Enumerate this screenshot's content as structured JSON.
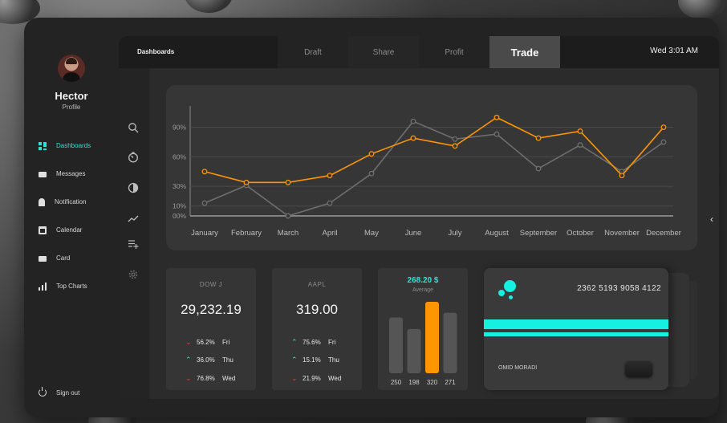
{
  "profile": {
    "name": "Hector",
    "subtitle": "Profile"
  },
  "nav": {
    "items": [
      {
        "label": "Dashboards",
        "icon": "dashboard-icon",
        "active": true
      },
      {
        "label": "Messages",
        "icon": "mail-icon"
      },
      {
        "label": "Notification",
        "icon": "bell-icon"
      },
      {
        "label": "Calendar",
        "icon": "calendar-icon"
      },
      {
        "label": "Card",
        "icon": "credit-card-icon"
      },
      {
        "label": "Top Charts",
        "icon": "bar-chart-icon"
      }
    ],
    "signout": "Sign out"
  },
  "topbar": {
    "section": "Dashboards",
    "tabs": [
      "Draft",
      "Share",
      "Profit",
      "Trade"
    ],
    "active_tab": "Trade",
    "clock": "Wed 3:01 AM"
  },
  "tools": [
    "search-icon",
    "timer-icon",
    "circle-icon",
    "trend-icon",
    "playlist-add-icon",
    "settings-icon"
  ],
  "chart_data": {
    "type": "line",
    "categories": [
      "January",
      "February",
      "March",
      "April",
      "May",
      "June",
      "July",
      "August",
      "September",
      "October",
      "November",
      "December"
    ],
    "y_tick_labels": [
      "00%",
      "10%",
      "30%",
      "60%",
      "90%"
    ],
    "y_ticks": [
      0,
      10,
      30,
      60,
      90
    ],
    "ylim": [
      0,
      110
    ],
    "series": [
      {
        "color": "#ff9500",
        "values": [
          45,
          34,
          34,
          41,
          63,
          79,
          71,
          100,
          79,
          86,
          41,
          90
        ]
      },
      {
        "color": "#6e6e6e",
        "values": [
          13,
          31,
          0,
          13,
          43,
          96,
          78,
          83,
          48,
          72,
          45,
          75
        ]
      }
    ]
  },
  "stats": [
    {
      "name": "DOW J",
      "value": "29,232.19",
      "rows": [
        {
          "dir": "down",
          "pct": "56.2%",
          "day": "Fri"
        },
        {
          "dir": "up",
          "pct": "36.0%",
          "day": "Thu"
        },
        {
          "dir": "down",
          "pct": "76.8%",
          "day": "Wed"
        }
      ]
    },
    {
      "name": "AAPL",
      "value": "319.00",
      "rows": [
        {
          "dir": "up",
          "pct": "75.6%",
          "day": "Fri"
        },
        {
          "dir": "up",
          "pct": "15.1%",
          "day": "Thu"
        },
        {
          "dir": "down",
          "pct": "21.9%",
          "day": "Wed"
        }
      ]
    }
  ],
  "average": {
    "amount": "268.20 $",
    "label": "Average",
    "bar_labels": [
      "250",
      "198",
      "320",
      "271"
    ],
    "bar_values": [
      250,
      198,
      320,
      271
    ],
    "highlight_index": 2,
    "bar_color": "#555555",
    "highlight_color": "#ff9500"
  },
  "card": {
    "number": "2362 5193 9058 4122",
    "holder": "OMID MORADI",
    "accent": "#16f0e0"
  },
  "side_handle": "‹"
}
